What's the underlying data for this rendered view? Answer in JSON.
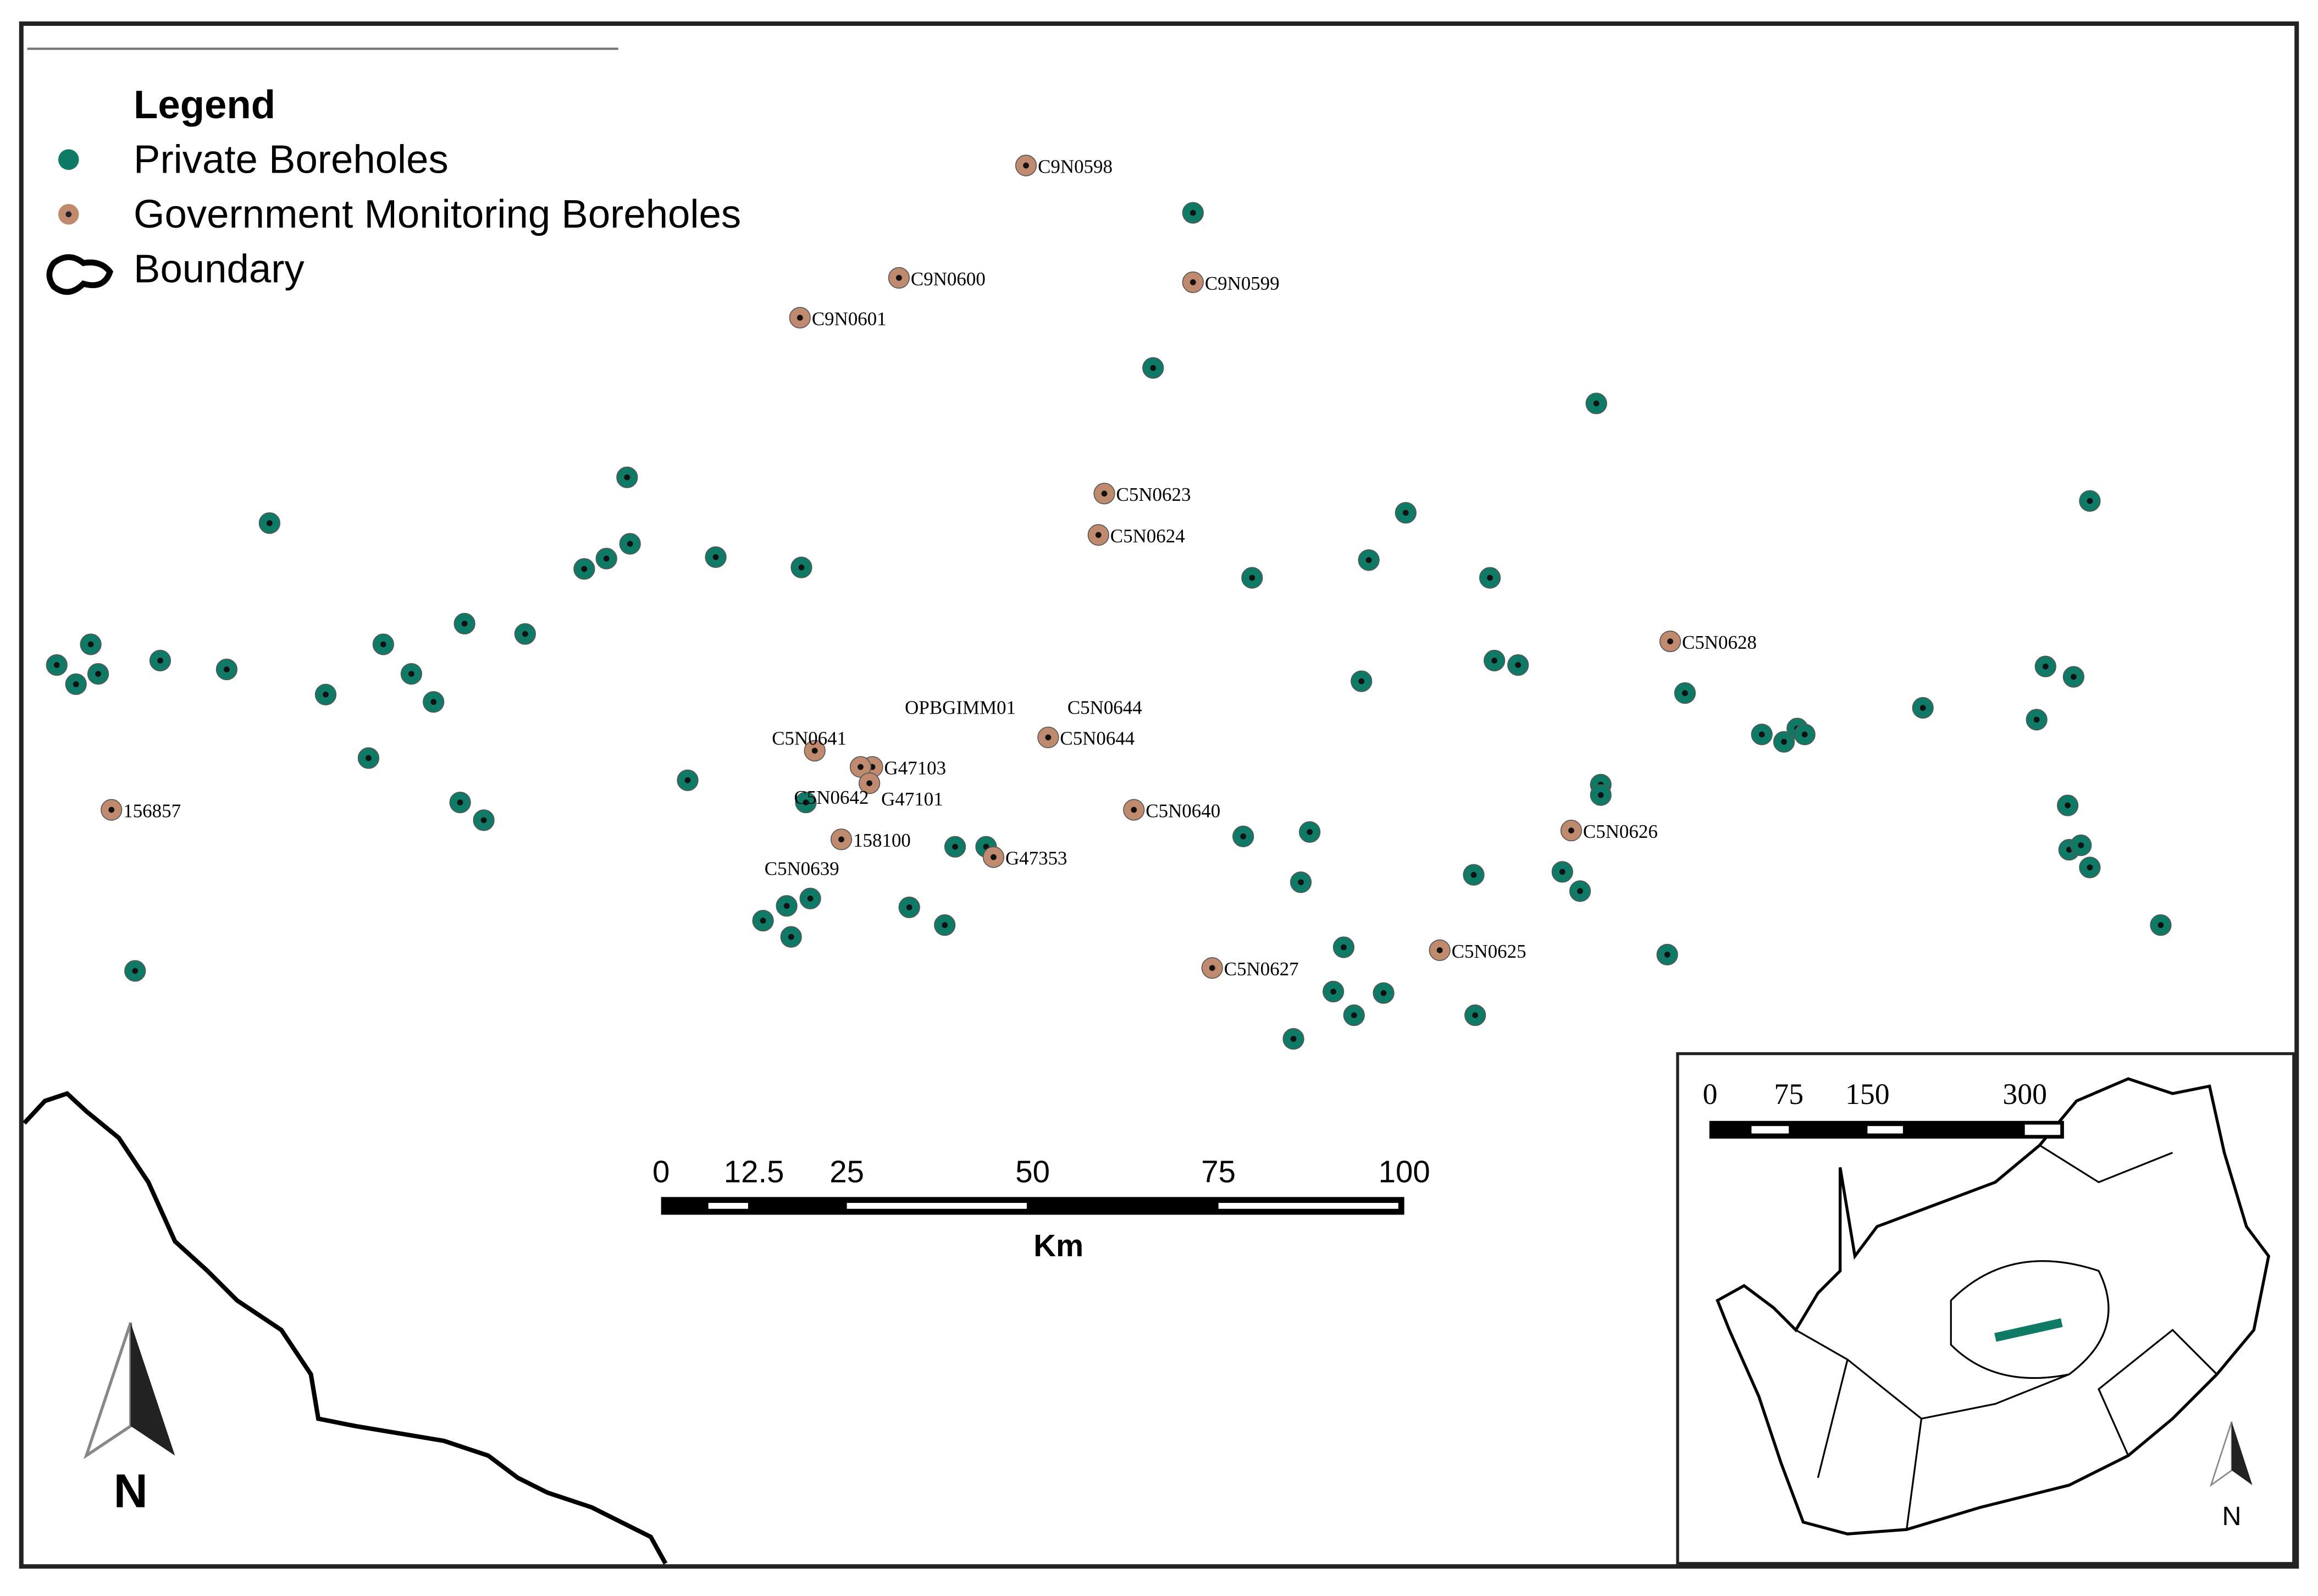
{
  "legend": {
    "title": "Legend",
    "items": [
      "Private Boreholes",
      "Government Monitoring Boreholes",
      "Boundary"
    ]
  },
  "government_boreholes": [
    "C9N0598",
    "C9N0600",
    "C9N0601",
    "C9N0599",
    "C5N0623",
    "C5N0624",
    "C5N0628",
    "C5N0644",
    "156857",
    "158100",
    "G47353",
    "C5N0640",
    "C5N0626",
    "C5N0627",
    "C5N0625",
    "G47103",
    "G47101",
    "C5N0641"
  ],
  "annotations": [
    "OPBGIMM01",
    "C5N0644",
    "C5N0642",
    "C5N0639"
  ],
  "scale_bar": {
    "ticks": [
      0,
      12.5,
      25,
      50,
      75,
      100
    ],
    "unit": "Km"
  },
  "north": "N",
  "inset": {
    "scale_ticks": [
      0,
      75,
      150,
      300
    ],
    "north": "N"
  }
}
